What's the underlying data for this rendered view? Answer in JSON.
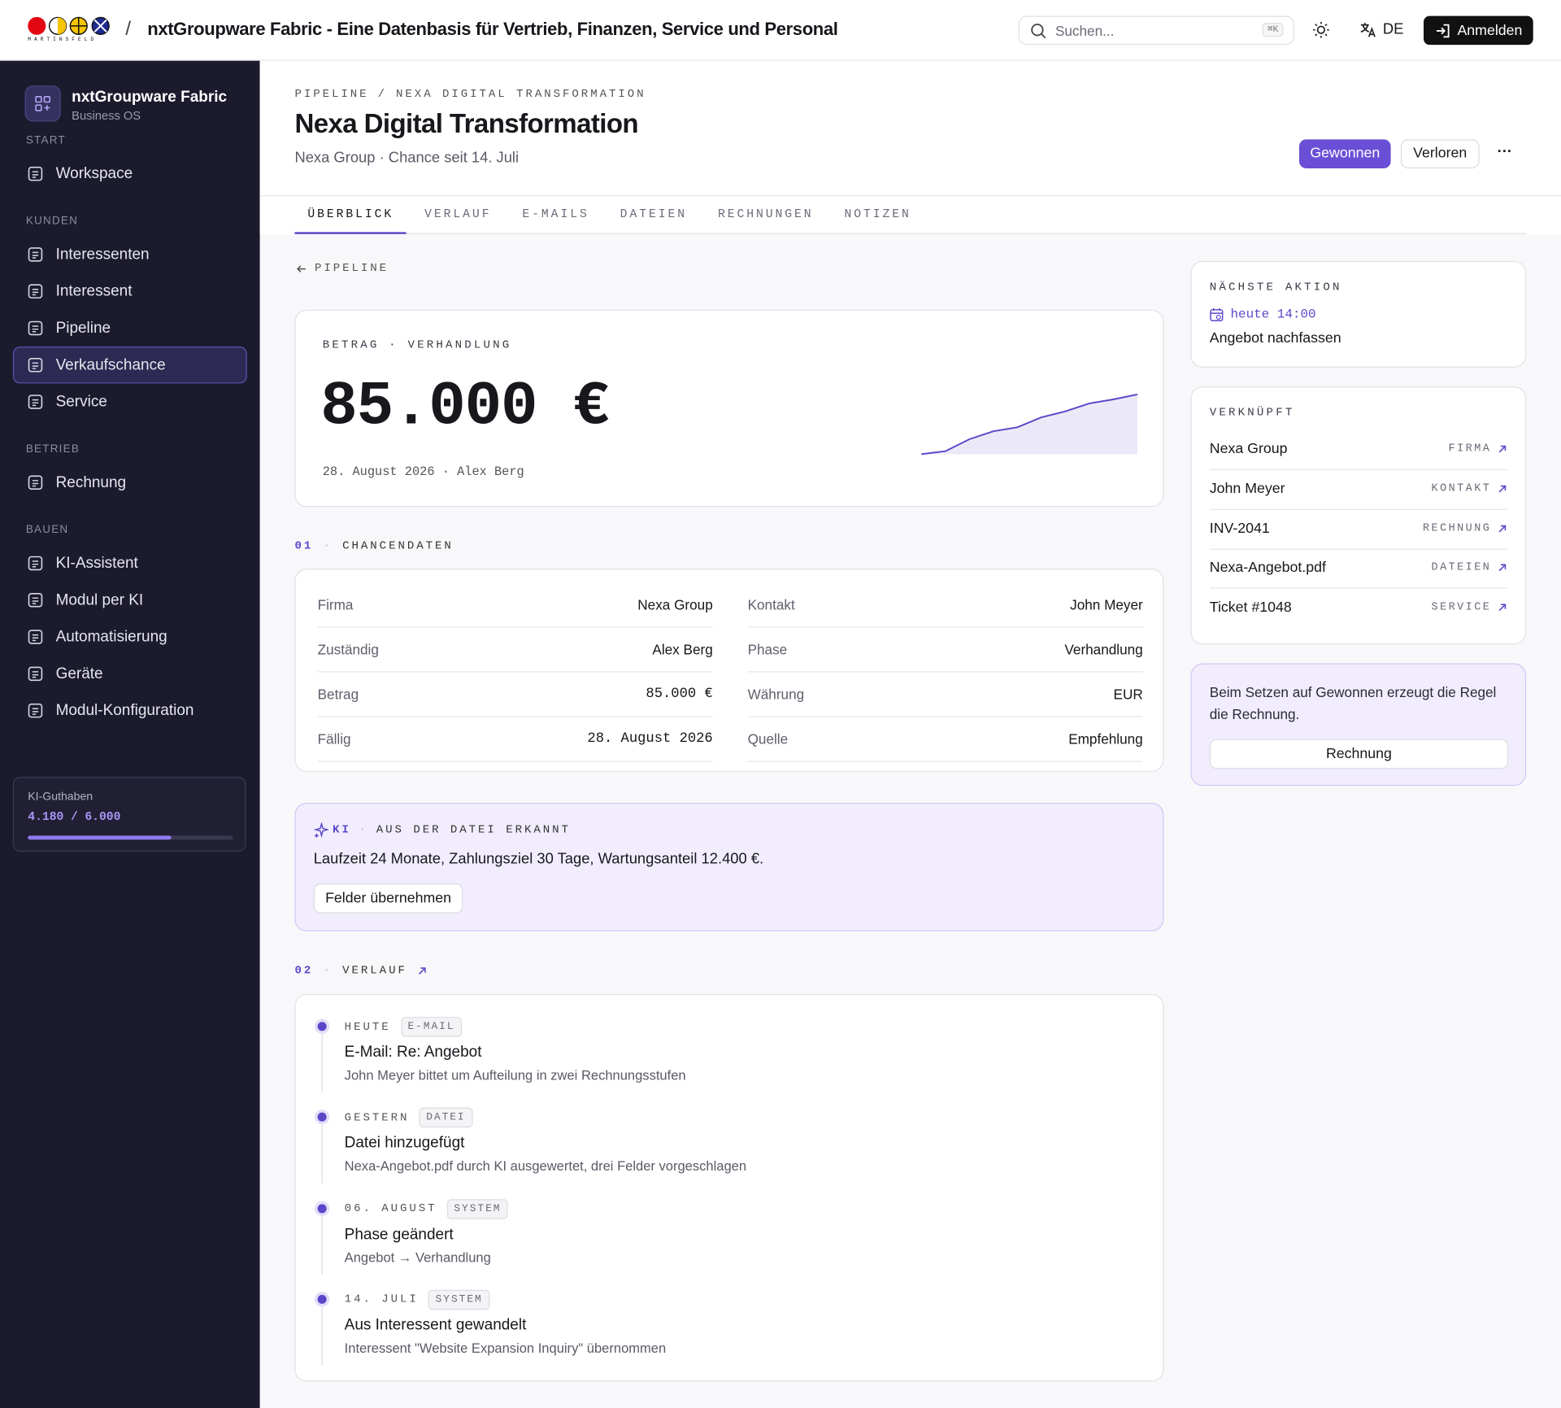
{
  "header": {
    "brand_caption": "MARTINSFELD",
    "separator": "/",
    "title": "nxtGroupware Fabric - Eine Datenbasis für Vertrieb, Finanzen, Service und Personal",
    "search_placeholder": "Suchen...",
    "search_shortcut": "⌘K",
    "language": "DE",
    "login": "Anmelden"
  },
  "sidebar": {
    "app_name": "nxtGroupware Fabric",
    "app_subtitle": "Business OS",
    "sections": [
      {
        "title": "START",
        "items": [
          {
            "label": "Workspace"
          }
        ]
      },
      {
        "title": "KUNDEN",
        "items": [
          {
            "label": "Interessenten"
          },
          {
            "label": "Interessent"
          },
          {
            "label": "Pipeline"
          },
          {
            "label": "Verkaufschance",
            "selected": true
          },
          {
            "label": "Service"
          }
        ]
      },
      {
        "title": "BETRIEB",
        "items": [
          {
            "label": "Rechnung"
          }
        ]
      },
      {
        "title": "BAUEN",
        "items": [
          {
            "label": "KI-Assistent"
          },
          {
            "label": "Modul per KI"
          },
          {
            "label": "Automatisierung"
          },
          {
            "label": "Geräte"
          },
          {
            "label": "Modul-Konfiguration"
          }
        ]
      }
    ],
    "credits": {
      "label": "KI-Guthaben",
      "used": {
        "value": 4180,
        "label": "4.180"
      },
      "separator": "/",
      "total": {
        "value": 6000,
        "label": "6.000"
      }
    }
  },
  "page": {
    "breadcrumb": [
      "PIPELINE",
      "NEXA DIGITAL TRANSFORMATION"
    ],
    "breadcrumb_separator": "/",
    "title": "Nexa Digital Transformation",
    "subtitle": "Nexa Group · Chance seit 14. Juli",
    "actions": {
      "won": "Gewonnen",
      "lost": "Verloren",
      "more": "···"
    },
    "tabs": [
      "ÜBERBLICK",
      "VERLAUF",
      "E-MAILS",
      "DATEIEN",
      "RECHNUNGEN",
      "NOTIZEN"
    ],
    "back_link": "PIPELINE",
    "amount_card": {
      "label": "BETRAG · VERHANDLUNG",
      "amount": "85.000 €",
      "meta": "28. August 2026 · Alex Berg",
      "sparkline": {
        "values": [
          0,
          3,
          15,
          23,
          27,
          37,
          43,
          51,
          55,
          60
        ],
        "ylim": [
          0,
          60
        ],
        "color": "#5b46c9"
      }
    },
    "details": {
      "number": "01",
      "separator": "·",
      "title": "CHANCENDATEN",
      "columns": [
        [
          {
            "label": "Firma",
            "value": "Nexa Group"
          },
          {
            "label": "Zuständig",
            "value": "Alex Berg"
          },
          {
            "label": "Betrag",
            "value": "85.000 €"
          },
          {
            "label": "Fällig",
            "value": "28. August 2026"
          }
        ],
        [
          {
            "label": "Kontakt",
            "value": "John Meyer"
          },
          {
            "label": "Phase",
            "value": "Verhandlung"
          },
          {
            "label": "Währung",
            "value": "EUR"
          },
          {
            "label": "Quelle",
            "value": "Empfehlung"
          }
        ]
      ]
    },
    "ai_card": {
      "tag": "KI",
      "separator": "·",
      "title": "AUS DER DATEI ERKANNT",
      "text": "Laufzeit 24 Monate, Zahlungsziel 30 Tage, Wartungsanteil 12.400 €.",
      "button": "Felder übernehmen"
    },
    "history": {
      "number": "02",
      "separator": "·",
      "title": "VERLAUF",
      "events": [
        {
          "when": "HEUTE",
          "tag": "E-MAIL",
          "title": "E-Mail: Re: Angebot",
          "description": "John Meyer bittet um Aufteilung in zwei Rechnungsstufen"
        },
        {
          "when": "GESTERN",
          "tag": "DATEI",
          "title": "Datei hinzugefügt",
          "description": "Nexa-Angebot.pdf durch KI ausgewertet, drei Felder vorgeschlagen"
        },
        {
          "when": "06. AUGUST",
          "tag": "SYSTEM",
          "title": "Phase geändert",
          "description": "Angebot → Verhandlung"
        },
        {
          "when": "14. JULI",
          "tag": "SYSTEM",
          "title": "Aus Interessent gewandelt",
          "description": "Interessent \"Website Expansion Inquiry\" übernommen"
        }
      ]
    },
    "next_action": {
      "title": "NÄCHSTE AKTION",
      "time": "heute 14:00",
      "text": "Angebot nachfassen"
    },
    "linked": {
      "title": "VERKNÜPFT",
      "items": [
        {
          "name": "Nexa Group",
          "type": "FIRMA"
        },
        {
          "name": "John Meyer",
          "type": "KONTAKT"
        },
        {
          "name": "INV-2041",
          "type": "RECHNUNG"
        },
        {
          "name": "Nexa-Angebot.pdf",
          "type": "DATEIEN"
        },
        {
          "name": "Ticket #1048",
          "type": "SERVICE"
        }
      ]
    },
    "rule_card": {
      "text": "Beim Setzen auf Gewonnen erzeugt die Regel die Rechnung.",
      "button": "Rechnung"
    }
  }
}
